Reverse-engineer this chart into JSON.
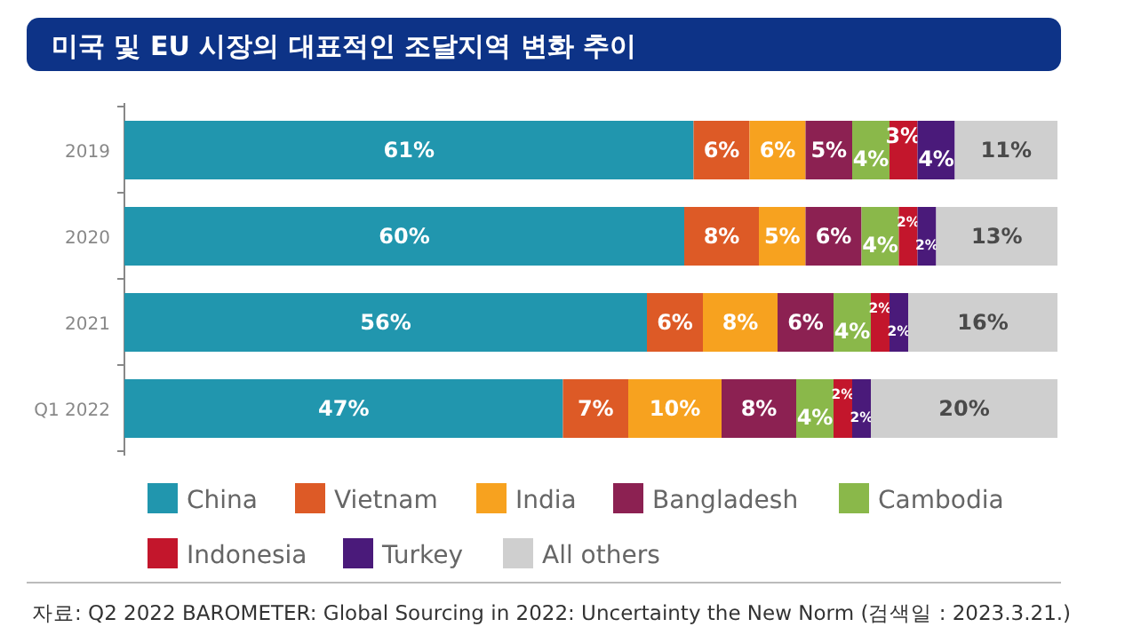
{
  "chart_data": {
    "type": "bar",
    "orientation": "horizontal",
    "stacked": true,
    "title": "미국 및 EU 시장의 대표적인 조달지역 변화 추이",
    "categories": [
      "2019",
      "2020",
      "2021",
      "Q1 2022"
    ],
    "series": [
      {
        "name": "China",
        "color": "#2196ae",
        "values": [
          61,
          60,
          56,
          47
        ],
        "value_labels": [
          "61%",
          "60%",
          "56%",
          "47%"
        ]
      },
      {
        "name": "Vietnam",
        "color": "#dd5a26",
        "values": [
          6,
          8,
          6,
          7
        ],
        "value_labels": [
          "6%",
          "8%",
          "6%",
          "7%"
        ]
      },
      {
        "name": "India",
        "color": "#f7a21f",
        "values": [
          6,
          5,
          8,
          10
        ],
        "value_labels": [
          "6%",
          "5%",
          "8%",
          "10%"
        ]
      },
      {
        "name": "Bangladesh",
        "color": "#8c2152",
        "values": [
          5,
          6,
          6,
          8
        ],
        "value_labels": [
          "5%",
          "6%",
          "6%",
          "8%"
        ]
      },
      {
        "name": "Cambodia",
        "color": "#8ab84a",
        "values": [
          4,
          4,
          4,
          4
        ],
        "value_labels": [
          "4%",
          "4%",
          "4%",
          "4%"
        ]
      },
      {
        "name": "Indonesia",
        "color": "#c3162c",
        "values": [
          3,
          2,
          2,
          2
        ],
        "value_labels": [
          "3%",
          "2%",
          "2%",
          "2%"
        ]
      },
      {
        "name": "Turkey",
        "color": "#4a1a7a",
        "values": [
          4,
          2,
          2,
          2
        ],
        "value_labels": [
          "4%",
          "2%",
          "2%",
          "2%"
        ]
      },
      {
        "name": "All others",
        "color": "#cfcfcf",
        "values": [
          11,
          13,
          16,
          20
        ],
        "value_labels": [
          "11%",
          "13%",
          "16%",
          "20%"
        ]
      }
    ],
    "legend": "bottom",
    "annotations": [
      "자료: Q2 2022 BAROMETER: Global Sourcing in 2022: Uncertainty the New Norm (검색일 : 2023.3.21.)"
    ]
  }
}
